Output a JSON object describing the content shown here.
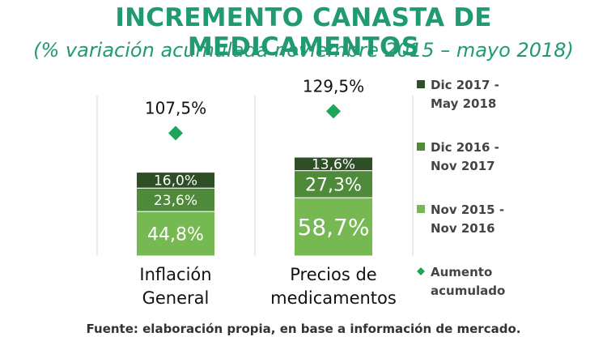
{
  "chart_data": {
    "type": "bar",
    "stacked": true,
    "title": "INCREMENTO CANASTA DE MEDICAMENTOS",
    "subtitle": "(% variación acumulada noviembre 2015 – mayo 2018)",
    "categories": [
      [
        "Inflación",
        "General"
      ],
      [
        "Precios de",
        "medicamentos"
      ]
    ],
    "series": [
      {
        "name": [
          "Nov 2015 -",
          "Nov 2016"
        ],
        "color": "#76b852",
        "values": [
          44.8,
          58.7
        ],
        "labels": [
          "44,8%",
          "58,7%"
        ]
      },
      {
        "name": [
          "Dic 2016 -",
          "Nov 2017"
        ],
        "color": "#4f8a3a",
        "values": [
          23.6,
          27.3
        ],
        "labels": [
          "23,6%",
          "27,3%"
        ]
      },
      {
        "name": [
          "Dic 2017 -",
          "May 2018"
        ],
        "color": "#2e4f26",
        "values": [
          16.0,
          13.6
        ],
        "labels": [
          "16,0%",
          "13,6%"
        ]
      }
    ],
    "totals": {
      "name": [
        "Aumento",
        "acumulado"
      ],
      "color": "#1ea55a",
      "values": [
        107.5,
        129.5
      ],
      "labels": [
        "107,5%",
        "129,5%"
      ]
    },
    "legend_position": "right",
    "grid": false
  },
  "source": "Fuente: elaboración propia, en base a información de mercado."
}
